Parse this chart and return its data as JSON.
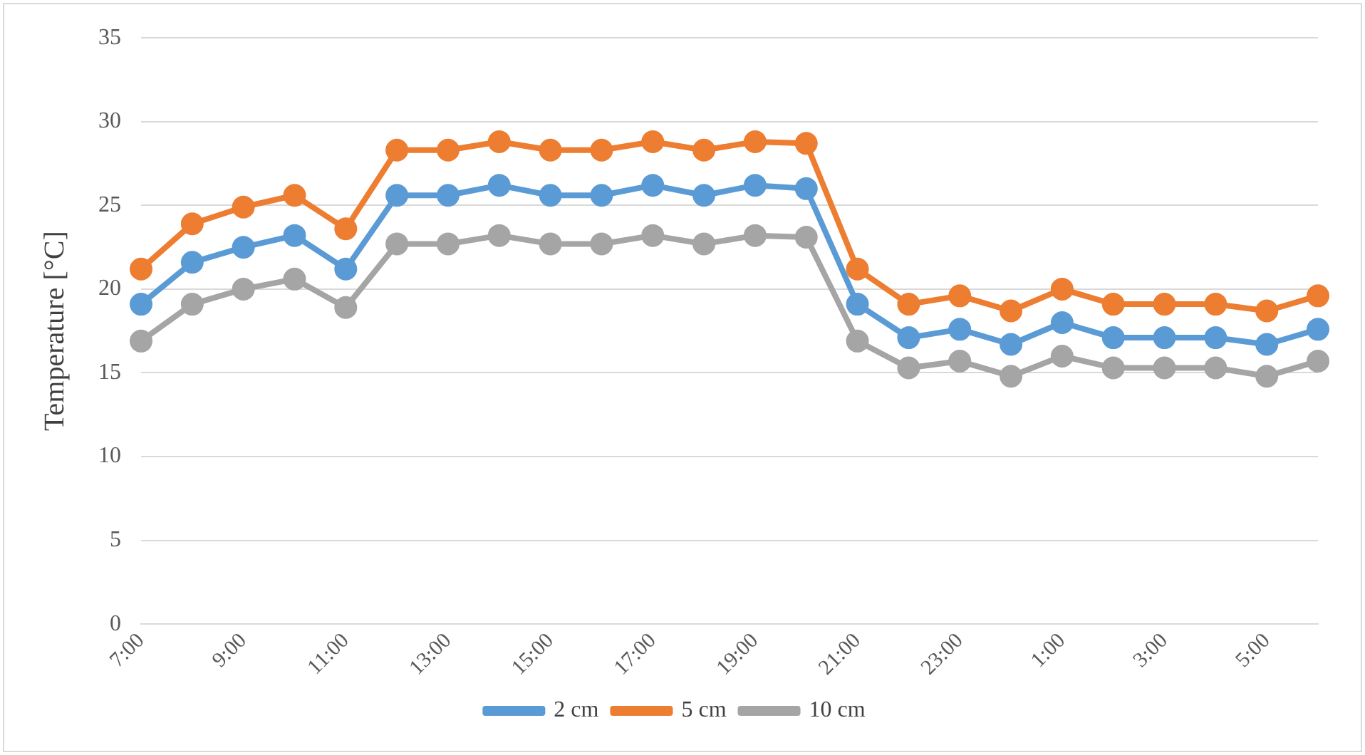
{
  "chart_data": {
    "type": "line",
    "ylabel": "Temperature [°C]",
    "categories": [
      "7:00",
      null,
      "9:00",
      null,
      "11:00",
      null,
      "13:00",
      null,
      "15:00",
      null,
      "17:00",
      null,
      "19:00",
      null,
      "21:00",
      null,
      "23:00",
      null,
      "1:00",
      null,
      "3:00",
      null,
      "5:00",
      null
    ],
    "series": [
      {
        "name": "2 cm",
        "color": "#5b9bd5",
        "values": [
          19.1,
          21.6,
          22.5,
          23.2,
          21.2,
          25.6,
          25.6,
          26.2,
          25.6,
          25.6,
          26.2,
          25.6,
          26.2,
          26.0,
          19.1,
          17.1,
          17.6,
          16.7,
          18.0,
          17.1,
          17.1,
          17.1,
          16.7,
          17.6
        ]
      },
      {
        "name": "5 cm",
        "color": "#ed7d31",
        "values": [
          21.2,
          23.9,
          24.9,
          25.6,
          23.6,
          28.3,
          28.3,
          28.8,
          28.3,
          28.3,
          28.8,
          28.3,
          28.8,
          28.7,
          21.2,
          19.1,
          19.6,
          18.7,
          20.0,
          19.1,
          19.1,
          19.1,
          18.7,
          19.6
        ]
      },
      {
        "name": "10 cm",
        "color": "#a5a5a5",
        "values": [
          16.9,
          19.1,
          20.0,
          20.6,
          18.9,
          22.7,
          22.7,
          23.2,
          22.7,
          22.7,
          23.2,
          22.7,
          23.2,
          23.1,
          16.9,
          15.3,
          15.7,
          14.8,
          16.0,
          15.3,
          15.3,
          15.3,
          14.8,
          15.7
        ]
      }
    ],
    "ylim": [
      0,
      35
    ],
    "yticks": [
      0,
      5,
      10,
      15,
      20,
      25,
      30,
      35
    ],
    "grid": "y",
    "legend": "bottom",
    "marker": "circle",
    "line_style": "solid"
  }
}
